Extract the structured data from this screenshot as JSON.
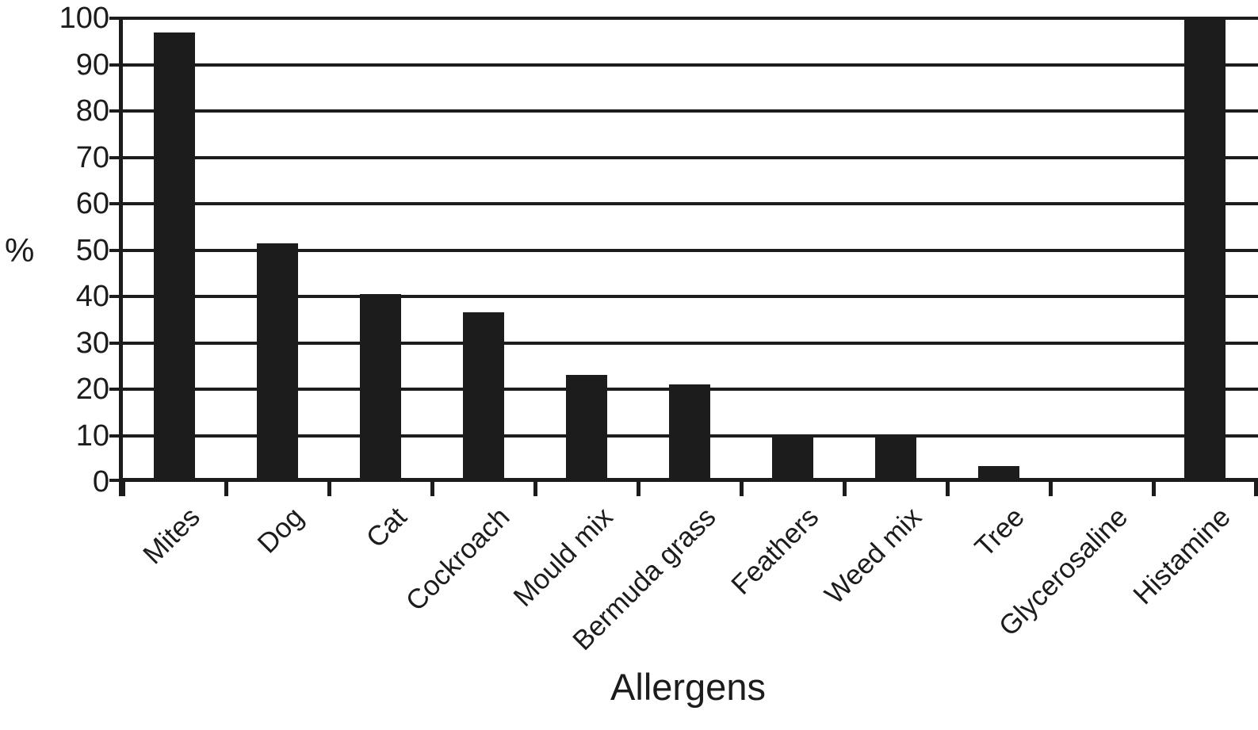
{
  "page": {
    "background": "#ffffff",
    "ink": "#1c1c1c"
  },
  "chart_data": {
    "type": "bar",
    "title": "",
    "xlabel": "Allergens",
    "ylabel": "%",
    "categories": [
      "Mites",
      "Dog",
      "Cat",
      "Cockroach",
      "Mould mix",
      "Bermuda grass",
      "Feathers",
      "Weed mix",
      "Tree",
      "Glycerosaline",
      "Histamine"
    ],
    "values": [
      97,
      51.5,
      40.5,
      36.5,
      23,
      21,
      10,
      10,
      3.5,
      0,
      100
    ],
    "ylim": [
      0,
      100
    ],
    "yticks": [
      0,
      10,
      20,
      30,
      40,
      50,
      60,
      70,
      80,
      90,
      100
    ],
    "grid": "horizontal-only",
    "legend": "none",
    "bar_color": "#1c1c1c",
    "x_tick_label_rotation_deg": -45
  }
}
